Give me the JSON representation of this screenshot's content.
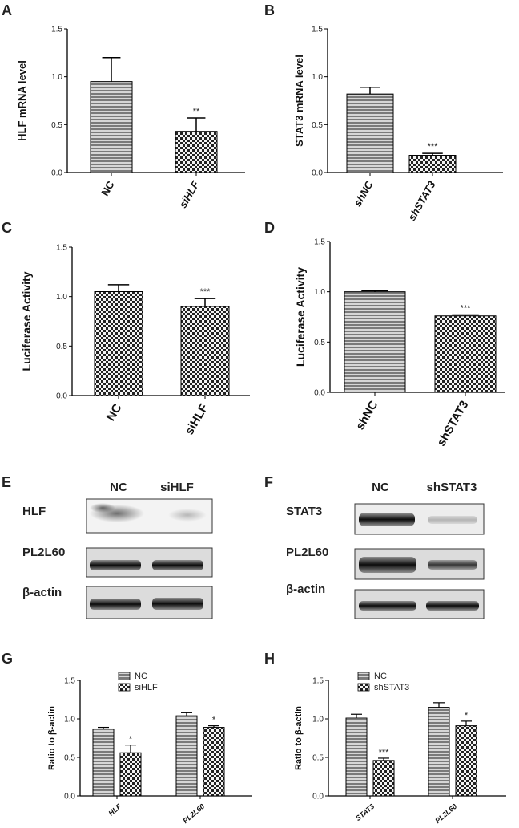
{
  "colors": {
    "axis": "#000000",
    "bar_fill_base": "#8a8a8a",
    "hatch_dark": "#222222"
  },
  "chart_data": [
    {
      "panel": "A",
      "type": "bar",
      "xlabel": "",
      "ylabel": "HLF mRNA level",
      "ylim": [
        0,
        1.5
      ],
      "yticks": [
        "0.0",
        "0.5",
        "1.0",
        "1.5"
      ],
      "categories": [
        "NC",
        "siHLF"
      ],
      "values": [
        0.95,
        0.43
      ],
      "errors": [
        0.25,
        0.14
      ],
      "significance": [
        "",
        "**"
      ],
      "patterns": [
        "stripe",
        "check"
      ],
      "italic_cats": [
        false,
        true
      ]
    },
    {
      "panel": "B",
      "type": "bar",
      "xlabel": "",
      "ylabel": "STAT3 mRNA level",
      "ylim": [
        0,
        1.5
      ],
      "yticks": [
        "0.0",
        "0.5",
        "1.0",
        "1.5"
      ],
      "categories": [
        "shNC",
        "shSTAT3"
      ],
      "values": [
        0.82,
        0.18
      ],
      "errors": [
        0.07,
        0.02
      ],
      "significance": [
        "",
        "***"
      ],
      "patterns": [
        "stripe",
        "check"
      ],
      "italic_cats": [
        true,
        true
      ]
    },
    {
      "panel": "C",
      "type": "bar",
      "xlabel": "",
      "ylabel": "Luciferase Activity",
      "ylim": [
        0,
        1.5
      ],
      "yticks": [
        "0.0",
        "0.5",
        "1.0",
        "1.5"
      ],
      "categories": [
        "NC",
        "siHLF"
      ],
      "values": [
        1.05,
        0.9
      ],
      "errors": [
        0.07,
        0.08
      ],
      "significance": [
        "",
        "***"
      ],
      "patterns": [
        "check",
        "check"
      ],
      "italic_cats": [
        false,
        false
      ]
    },
    {
      "panel": "D",
      "type": "bar",
      "xlabel": "",
      "ylabel": "Luciferase Activity",
      "ylim": [
        0,
        1.5
      ],
      "yticks": [
        "0.0",
        "0.5",
        "1.0",
        "1.5"
      ],
      "categories": [
        "shNC",
        "shSTAT3"
      ],
      "values": [
        1.0,
        0.76
      ],
      "errors": [
        0.01,
        0.01
      ],
      "significance": [
        "",
        "***"
      ],
      "patterns": [
        "stripe",
        "check"
      ],
      "italic_cats": [
        false,
        false
      ]
    },
    {
      "panel": "G",
      "type": "bar",
      "xlabel": "",
      "ylabel": "Ratio to β-actin",
      "ylim": [
        0,
        1.5
      ],
      "yticks": [
        "0.0",
        "0.5",
        "1.0",
        "1.5"
      ],
      "categories": [
        "HLF",
        "PL2L60"
      ],
      "series": [
        {
          "name": "NC",
          "values": [
            0.87,
            1.04
          ],
          "errors": [
            0.02,
            0.04
          ],
          "pattern": "stripe"
        },
        {
          "name": "siHLF",
          "values": [
            0.56,
            0.89
          ],
          "errors": [
            0.1,
            0.02
          ],
          "pattern": "check"
        }
      ],
      "significance": [
        "*",
        "*"
      ],
      "legend": "top-left"
    },
    {
      "panel": "H",
      "type": "bar",
      "xlabel": "",
      "ylabel": "Ratio to β-actin",
      "ylim": [
        0,
        1.5
      ],
      "yticks": [
        "0.0",
        "0.5",
        "1.0",
        "1.5"
      ],
      "categories": [
        "STAT3",
        "PL2L60"
      ],
      "series": [
        {
          "name": "NC",
          "values": [
            1.01,
            1.15
          ],
          "errors": [
            0.05,
            0.06
          ],
          "pattern": "stripe"
        },
        {
          "name": "shSTAT3",
          "values": [
            0.46,
            0.91
          ],
          "errors": [
            0.03,
            0.06
          ],
          "pattern": "check"
        }
      ],
      "significance": [
        "***",
        "*"
      ],
      "legend": "top-left"
    }
  ],
  "blots": {
    "E": {
      "letter": "E",
      "lanes": [
        "NC",
        "siHLF"
      ],
      "rows": [
        "HLF",
        "PL2L60",
        "β-actin"
      ]
    },
    "F": {
      "letter": "F",
      "lanes": [
        "NC",
        "shSTAT3"
      ],
      "rows": [
        "STAT3",
        "PL2L60",
        "β-actin"
      ]
    }
  }
}
